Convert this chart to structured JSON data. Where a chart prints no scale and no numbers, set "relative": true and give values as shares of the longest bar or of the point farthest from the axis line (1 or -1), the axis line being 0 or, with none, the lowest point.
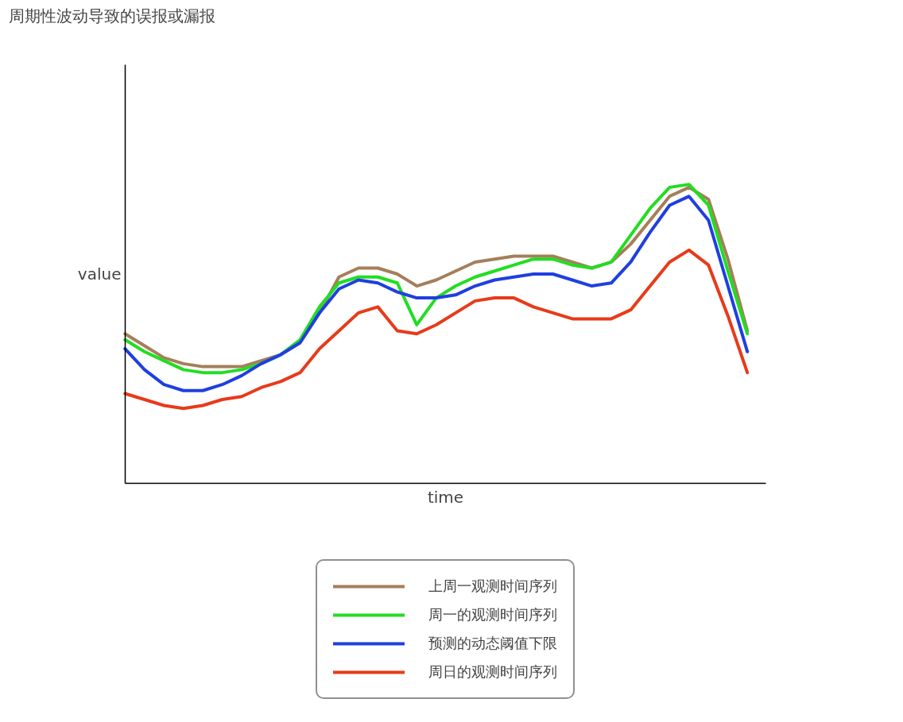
{
  "chart_data": {
    "type": "line",
    "title": "周期性波动导致的误报或漏报",
    "xlabel": "time",
    "ylabel": "value",
    "relative": true,
    "legend": "bottom",
    "categories": [
      null,
      null,
      null,
      null,
      null,
      null,
      null,
      null,
      null,
      null,
      null,
      null,
      null,
      null,
      null,
      null,
      null,
      null,
      null,
      null,
      null,
      null,
      null,
      null,
      null,
      null,
      null,
      null,
      null,
      null,
      null,
      null,
      null
    ],
    "series": [
      {
        "name": "上周一观测时间序列",
        "color": "#a57f5a",
        "values": [
          0.5,
          0.46,
          0.42,
          0.4,
          0.39,
          0.39,
          0.39,
          0.41,
          0.43,
          0.47,
          0.57,
          0.69,
          0.72,
          0.72,
          0.7,
          0.66,
          0.68,
          0.71,
          0.74,
          0.75,
          0.76,
          0.76,
          0.76,
          0.74,
          0.72,
          0.74,
          0.8,
          0.88,
          0.96,
          0.99,
          0.95,
          0.75,
          0.51
        ]
      },
      {
        "name": "周一的观测时间序列",
        "color": "#22dd22",
        "values": [
          0.48,
          0.44,
          0.41,
          0.38,
          0.37,
          0.37,
          0.38,
          0.4,
          0.43,
          0.48,
          0.59,
          0.67,
          0.69,
          0.69,
          0.67,
          0.53,
          0.62,
          0.66,
          0.69,
          0.71,
          0.73,
          0.75,
          0.75,
          0.73,
          0.72,
          0.74,
          0.83,
          0.92,
          0.99,
          1.0,
          0.93,
          0.71,
          0.5
        ]
      },
      {
        "name": "预测的动态阈值下限",
        "color": "#1f3fe0",
        "values": [
          0.45,
          0.38,
          0.33,
          0.31,
          0.31,
          0.33,
          0.36,
          0.4,
          0.43,
          0.47,
          0.57,
          0.65,
          0.68,
          0.67,
          0.64,
          0.62,
          0.62,
          0.63,
          0.66,
          0.68,
          0.69,
          0.7,
          0.7,
          0.68,
          0.66,
          0.67,
          0.74,
          0.84,
          0.93,
          0.96,
          0.88,
          0.66,
          0.44
        ]
      },
      {
        "name": "周日的观测时间序列",
        "color": "#e83a1a",
        "values": [
          0.3,
          0.28,
          0.26,
          0.25,
          0.26,
          0.28,
          0.29,
          0.32,
          0.34,
          0.37,
          0.45,
          0.51,
          0.57,
          0.59,
          0.51,
          0.5,
          0.53,
          0.57,
          0.61,
          0.62,
          0.62,
          0.59,
          0.57,
          0.55,
          0.55,
          0.55,
          0.58,
          0.66,
          0.74,
          0.78,
          0.73,
          0.56,
          0.37
        ]
      }
    ]
  }
}
